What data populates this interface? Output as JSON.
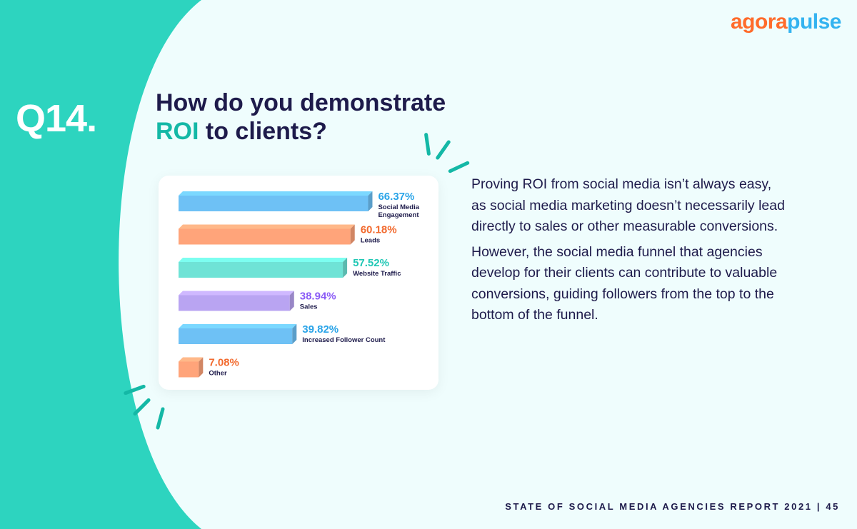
{
  "brand": {
    "logo_part1": "agora",
    "logo_part2": "pulse"
  },
  "question_number": "Q14.",
  "title": {
    "line1": "How do you demonstrate",
    "highlight": "ROI",
    "line2_rest": " to clients?"
  },
  "body": {
    "paragraph1": "Proving ROI from social media isn’t always easy, as social media marketing doesn’t necessarily lead directly to sales or other measurable conversions.",
    "paragraph2": "However, the social media funnel that agencies develop for their clients can contribute to valuable conversions, guiding followers from the top to the bottom of the funnel."
  },
  "footer": {
    "report": "STATE OF SOCIAL MEDIA AGENCIES REPORT 2021",
    "separator": "|",
    "page": "45"
  },
  "colors": {
    "teal_bg": "#2dd4bf",
    "panel": "#effdfd",
    "navy": "#1e1b4b",
    "accent_teal": "#14b8a6",
    "logo_orange": "#ff6b2b",
    "logo_blue": "#33b3f0"
  },
  "chart_data": {
    "type": "bar",
    "orientation": "horizontal",
    "unit": "%",
    "categories": [
      [
        "Social Media",
        "Engagement"
      ],
      [
        "Leads"
      ],
      [
        "Website Traffic"
      ],
      [
        "Sales"
      ],
      [
        "Increased Follower Count"
      ],
      [
        "Other"
      ]
    ],
    "values": [
      66.37,
      60.18,
      57.52,
      38.94,
      39.82,
      7.08
    ],
    "value_labels": [
      "66.37%",
      "60.18%",
      "57.52%",
      "38.94%",
      "39.82%",
      "7.08%"
    ],
    "bar_colors": [
      "#6ec1f5",
      "#ffa47a",
      "#6fe3d6",
      "#b9a4f2",
      "#6ec1f5",
      "#ffa47a"
    ],
    "label_colors": [
      "#2aa4e8",
      "#f26a2e",
      "#1fc7b4",
      "#8b5cf6",
      "#2aa4e8",
      "#f26a2e"
    ]
  }
}
